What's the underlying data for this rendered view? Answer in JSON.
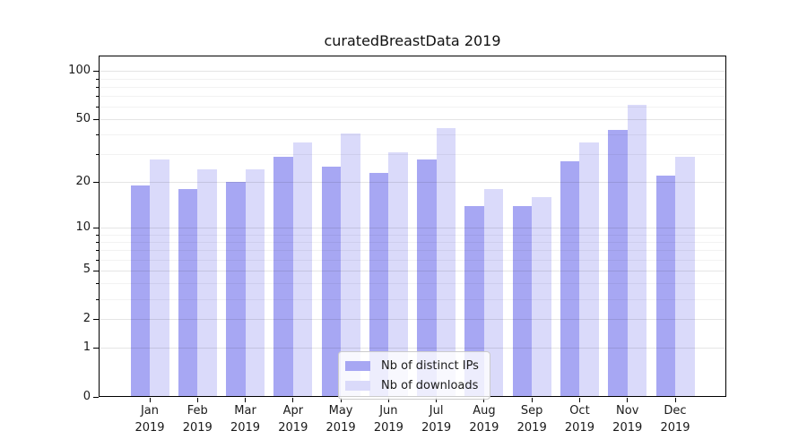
{
  "chart_data": {
    "type": "bar",
    "title": "curatedBreastData 2019",
    "year_label": "2019",
    "categories": [
      "Jan",
      "Feb",
      "Mar",
      "Apr",
      "May",
      "Jun",
      "Jul",
      "Aug",
      "Sep",
      "Oct",
      "Nov",
      "Dec"
    ],
    "series": [
      {
        "name": "Nb of distinct IPs",
        "color": "#a7a7f3",
        "values": [
          19,
          18,
          20,
          29,
          25,
          23,
          28,
          14,
          14,
          27,
          43,
          22
        ]
      },
      {
        "name": "Nb of downloads",
        "color": "#dadafa",
        "values": [
          28,
          24,
          24,
          36,
          41,
          31,
          44,
          18,
          16,
          36,
          62,
          29
        ]
      }
    ],
    "yscale": "log1p",
    "yticks": [
      0,
      1,
      2,
      5,
      10,
      20,
      50,
      100
    ],
    "minor_yticks": [
      3,
      4,
      6,
      7,
      8,
      9,
      30,
      40,
      60,
      70,
      80,
      90
    ],
    "ylim": [
      0,
      125
    ],
    "xlabel": "",
    "ylabel": "",
    "grid": true,
    "legend_position": "lower center"
  }
}
